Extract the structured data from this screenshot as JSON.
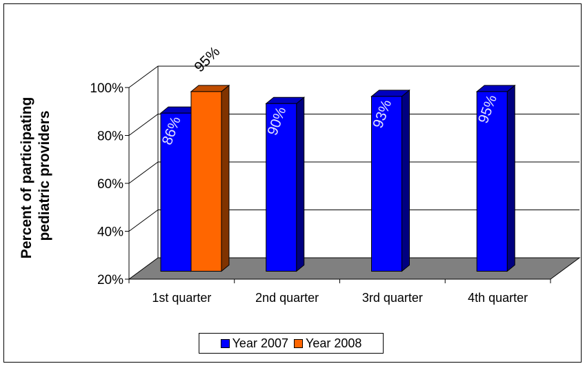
{
  "chart_data": {
    "type": "bar",
    "title": "",
    "xlabel": "",
    "ylabel": "Percent of participating pediatric providers",
    "ylabel_lines": [
      "Percent of participating",
      "pediatric providers"
    ],
    "categories": [
      "1st quarter",
      "2nd quarter",
      "3rd quarter",
      "4th quarter"
    ],
    "series": [
      {
        "name": "Year 2007",
        "color": "#0000ff",
        "values": [
          86,
          90,
          93,
          95
        ],
        "labels": [
          "86%",
          "90%",
          "93%",
          "95%"
        ]
      },
      {
        "name": "Year 2008",
        "color": "#ff6600",
        "values": [
          95,
          null,
          null,
          null
        ],
        "labels": [
          "95%",
          "",
          "",
          ""
        ]
      }
    ],
    "ylim": [
      20,
      100
    ],
    "yticks": [
      20,
      40,
      60,
      80,
      100
    ],
    "ytick_labels": [
      "20%",
      "40%",
      "60%",
      "80%",
      "100%"
    ],
    "grid": true,
    "three_d": true,
    "floor_color": "#808080",
    "legend_position": "bottom"
  }
}
